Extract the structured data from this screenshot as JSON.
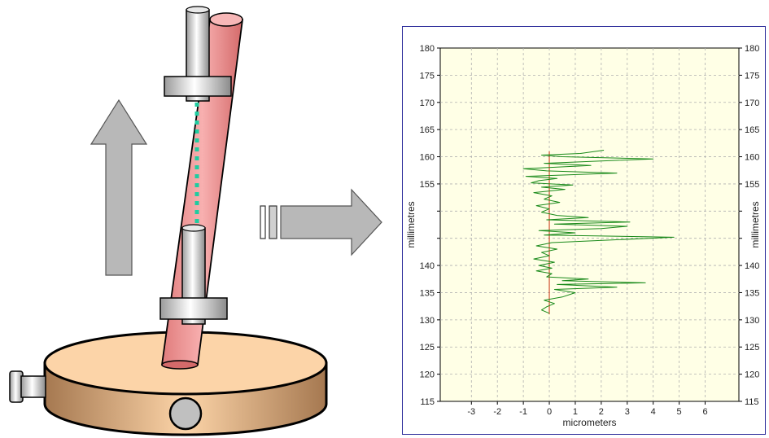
{
  "colors": {
    "tube": "#f0a0a0",
    "base_top": "#fcd4a8",
    "base_side": "#c99a66",
    "arrow": "#b8b8b8",
    "dots": "#1fcca0",
    "plot_bg": "#ffffe6",
    "plot_frame": "#2b2b9a",
    "trace": "#1a8a1a",
    "center_line": "#d05030",
    "grid": "#b0b0b0"
  },
  "illustration": {
    "parts": [
      "upright-arrow",
      "tube",
      "clamp-top",
      "clamp-bottom",
      "dotted-scan-line",
      "rotary-base",
      "side-knob",
      "front-knob",
      "right-arrow"
    ]
  },
  "chart_data": {
    "type": "line",
    "title": "",
    "xlabel": "micrometers",
    "ylabel": "millimetres",
    "ylabel_right": "millimetres",
    "xlim": [
      -4.2,
      7.3
    ],
    "ylim": [
      115,
      180
    ],
    "x_ticks": [
      -3,
      -2,
      -1,
      0,
      1,
      2,
      3,
      4,
      5,
      6
    ],
    "y_ticks": [
      115,
      120,
      125,
      130,
      135,
      140,
      145,
      150,
      155,
      160,
      165,
      170,
      175,
      180
    ],
    "y_tick_labels_left": [
      "115",
      "120",
      "125",
      "130",
      "135",
      "140",
      "",
      "",
      "155",
      "160",
      "165",
      "170",
      "175",
      "180"
    ],
    "y_tick_labels_right": [
      "115",
      "120",
      "125",
      "130",
      "135",
      "140",
      "",
      "",
      "155",
      "160",
      "165",
      "170",
      "175",
      "180"
    ],
    "grid": true,
    "center_line": {
      "x": 0,
      "y_range": [
        131,
        161
      ]
    },
    "series": [
      {
        "points": [
          [
            0,
            131.2
          ],
          [
            -0.3,
            131.8
          ],
          [
            -0.1,
            132.4
          ],
          [
            0.2,
            133.0
          ],
          [
            -0.2,
            133.6
          ],
          [
            0.5,
            134.2
          ],
          [
            1.0,
            135.0
          ],
          [
            0.2,
            135.6
          ],
          [
            2.6,
            136.0
          ],
          [
            0.3,
            136.5
          ],
          [
            3.7,
            136.8
          ],
          [
            0.5,
            137.2
          ],
          [
            1.5,
            137.5
          ],
          [
            -0.1,
            137.9
          ],
          [
            0.1,
            138.5
          ],
          [
            -0.5,
            139.0
          ],
          [
            0.1,
            139.5
          ],
          [
            -0.4,
            140.0
          ],
          [
            0.2,
            140.6
          ],
          [
            -0.6,
            141.2
          ],
          [
            0.0,
            141.8
          ],
          [
            -0.3,
            142.4
          ],
          [
            0.3,
            143.0
          ],
          [
            -0.5,
            143.6
          ],
          [
            0.1,
            144.2
          ],
          [
            4.8,
            145.2
          ],
          [
            -0.2,
            145.6
          ],
          [
            1.0,
            146.0
          ],
          [
            -0.4,
            146.4
          ],
          [
            2.0,
            146.8
          ],
          [
            3.0,
            147.2
          ],
          [
            0.2,
            147.6
          ],
          [
            3.1,
            148.0
          ],
          [
            -0.1,
            148.4
          ],
          [
            1.5,
            148.8
          ],
          [
            0.3,
            149.2
          ],
          [
            -0.3,
            149.8
          ],
          [
            0.0,
            150.4
          ],
          [
            -0.5,
            151.0
          ],
          [
            0.4,
            151.6
          ],
          [
            -0.2,
            152.2
          ],
          [
            0.1,
            152.8
          ],
          [
            -0.6,
            153.4
          ],
          [
            0.6,
            154.0
          ],
          [
            -0.3,
            154.4
          ],
          [
            0.9,
            154.8
          ],
          [
            -0.7,
            155.2
          ],
          [
            -0.4,
            155.6
          ],
          [
            0.3,
            156.0
          ],
          [
            -0.9,
            156.4
          ],
          [
            2.6,
            157.0
          ],
          [
            -0.1,
            157.4
          ],
          [
            -1.0,
            157.8
          ],
          [
            1.6,
            158.4
          ],
          [
            -0.2,
            158.8
          ],
          [
            4.0,
            159.6
          ],
          [
            0.5,
            160.0
          ],
          [
            -0.3,
            160.3
          ],
          [
            1.2,
            160.6
          ],
          [
            2.1,
            161.2
          ]
        ]
      }
    ]
  }
}
